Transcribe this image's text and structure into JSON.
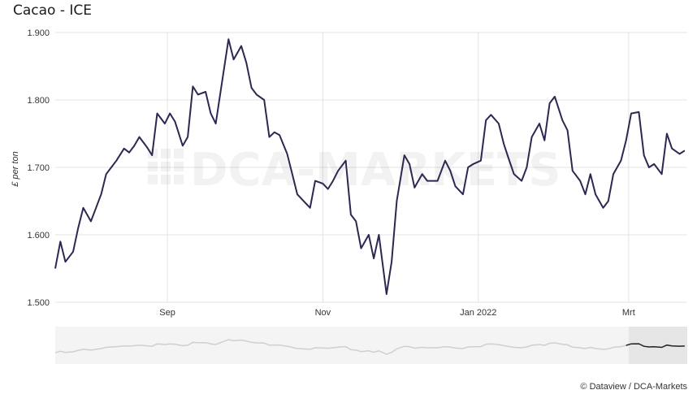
{
  "title": "Cacao - ICE",
  "credit": "© Dataview / DCA-Markets",
  "watermark": "DCA-MARKETS",
  "colors": {
    "line": "#2e2752",
    "grid": "#e3e3e3",
    "navigator_line": "#cfcfcf",
    "navigator_selected": "#222222"
  },
  "chart_data": {
    "type": "line",
    "title": "Cacao - ICE",
    "ylabel": "£ per ton",
    "xlabel": "",
    "ylim": [
      1500,
      1900
    ],
    "yticks": [
      "1.900",
      "1.800",
      "1.700",
      "1.600",
      "1.500"
    ],
    "xticks": [
      {
        "label": "Sep",
        "date": "2021-09-01"
      },
      {
        "label": "Nov",
        "date": "2021-11-01"
      },
      {
        "label": "Jan 2022",
        "date": "2022-01-01"
      },
      {
        "label": "Mrt",
        "date": "2022-03-01"
      }
    ],
    "xrange": [
      "2021-07-19",
      "2022-03-24"
    ],
    "grid": true,
    "navigator": true,
    "series": [
      {
        "x": [
          "2021-07-19",
          "2021-07-21",
          "2021-07-23",
          "2021-07-26",
          "2021-07-28",
          "2021-07-30",
          "2021-08-02",
          "2021-08-04",
          "2021-08-06",
          "2021-08-08",
          "2021-08-10",
          "2021-08-12",
          "2021-08-15",
          "2021-08-17",
          "2021-08-19",
          "2021-08-21",
          "2021-08-24",
          "2021-08-26",
          "2021-08-28",
          "2021-08-31",
          "2021-09-02",
          "2021-09-04",
          "2021-09-07",
          "2021-09-09",
          "2021-09-11",
          "2021-09-13",
          "2021-09-16",
          "2021-09-18",
          "2021-09-20",
          "2021-09-23",
          "2021-09-25",
          "2021-09-27",
          "2021-09-30",
          "2021-10-02",
          "2021-10-04",
          "2021-10-06",
          "2021-10-09",
          "2021-10-11",
          "2021-10-13",
          "2021-10-15",
          "2021-10-18",
          "2021-10-20",
          "2021-10-22",
          "2021-10-25",
          "2021-10-27",
          "2021-10-29",
          "2021-11-01",
          "2021-11-03",
          "2021-11-05",
          "2021-11-07",
          "2021-11-10",
          "2021-11-12",
          "2021-11-14",
          "2021-11-16",
          "2021-11-19",
          "2021-11-21",
          "2021-11-23",
          "2021-11-26",
          "2021-11-28",
          "2021-11-30",
          "2021-12-03",
          "2021-12-05",
          "2021-12-07",
          "2021-12-10",
          "2021-12-12",
          "2021-12-14",
          "2021-12-16",
          "2021-12-19",
          "2021-12-21",
          "2021-12-23",
          "2021-12-26",
          "2021-12-28",
          "2021-12-30",
          "2022-01-02",
          "2022-01-04",
          "2022-01-06",
          "2022-01-09",
          "2022-01-11",
          "2022-01-13",
          "2022-01-15",
          "2022-01-18",
          "2022-01-20",
          "2022-01-22",
          "2022-01-25",
          "2022-01-27",
          "2022-01-29",
          "2022-01-31",
          "2022-02-03",
          "2022-02-05",
          "2022-02-07",
          "2022-02-10",
          "2022-02-12",
          "2022-02-14",
          "2022-02-16",
          "2022-02-19",
          "2022-02-21",
          "2022-02-23",
          "2022-02-26",
          "2022-02-28",
          "2022-03-02",
          "2022-03-05",
          "2022-03-07",
          "2022-03-09",
          "2022-03-11",
          "2022-03-14",
          "2022-03-16",
          "2022-03-18",
          "2022-03-21",
          "2022-03-23"
        ],
        "values": [
          1550,
          1590,
          1560,
          1575,
          1610,
          1640,
          1620,
          1640,
          1660,
          1690,
          1700,
          1710,
          1728,
          1722,
          1732,
          1745,
          1730,
          1718,
          1780,
          1765,
          1780,
          1768,
          1732,
          1745,
          1820,
          1808,
          1812,
          1780,
          1765,
          1840,
          1890,
          1860,
          1880,
          1855,
          1818,
          1808,
          1800,
          1745,
          1752,
          1748,
          1720,
          1690,
          1660,
          1648,
          1640,
          1680,
          1676,
          1668,
          1680,
          1695,
          1710,
          1630,
          1620,
          1580,
          1600,
          1565,
          1600,
          1512,
          1560,
          1650,
          1718,
          1705,
          1670,
          1690,
          1680,
          1680,
          1680,
          1710,
          1695,
          1672,
          1660,
          1700,
          1705,
          1710,
          1770,
          1778,
          1765,
          1735,
          1712,
          1690,
          1680,
          1700,
          1745,
          1765,
          1740,
          1795,
          1805,
          1770,
          1755,
          1695,
          1680,
          1660,
          1690,
          1660,
          1640,
          1650,
          1690,
          1710,
          1740,
          1780,
          1782,
          1718,
          1700,
          1705,
          1690,
          1750,
          1728,
          1720,
          1725
        ]
      }
    ]
  }
}
